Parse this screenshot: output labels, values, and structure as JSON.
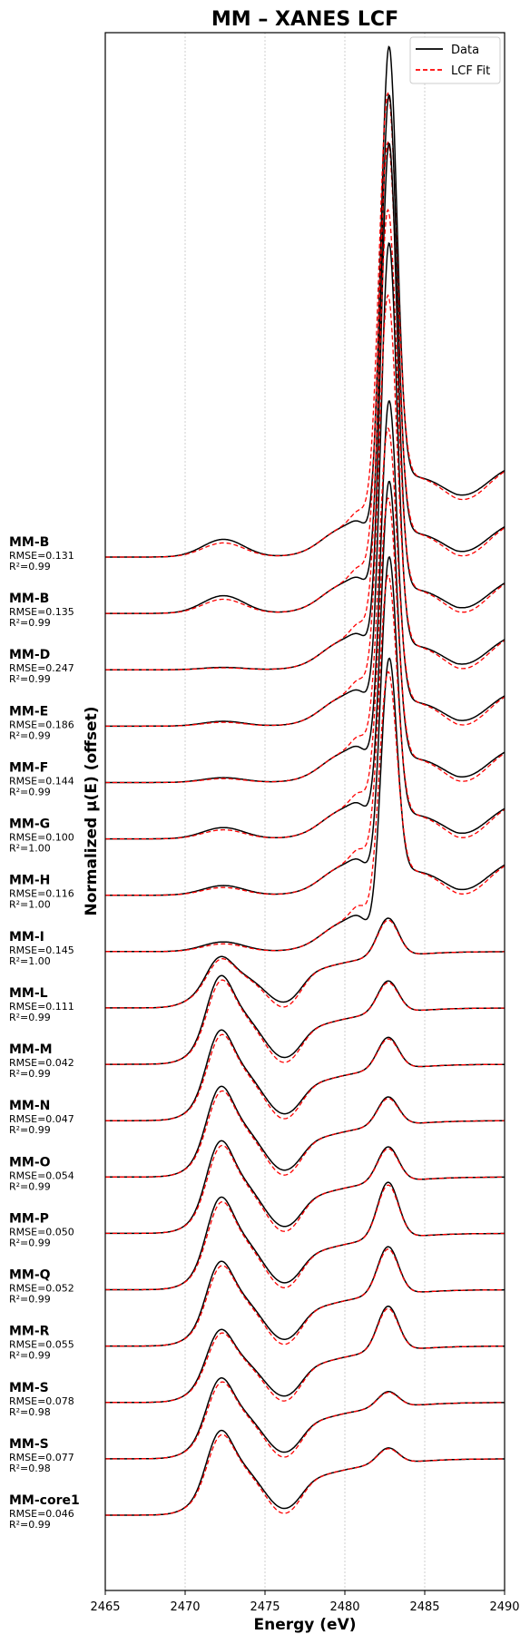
{
  "chart_data": {
    "type": "line",
    "title": "MM – XANES LCF",
    "xlabel": "Energy (eV)",
    "ylabel": "Normalized μ(E) (offset)",
    "xlim": [
      2465,
      2490
    ],
    "xticks": [
      2465,
      2470,
      2475,
      2480,
      2485,
      2490
    ],
    "grid": "x-only dotted",
    "legend": {
      "placement": "top-right",
      "entries": [
        {
          "label": "Data",
          "color": "#000000",
          "style": "solid"
        },
        {
          "label": "LCF Fit",
          "color": "#ff0000",
          "style": "dashed"
        }
      ]
    },
    "offset_step": 0.35,
    "series": [
      {
        "name": "MM-B",
        "rmse": "RMSE=0.131",
        "r2": "R²=0.99",
        "kind": "reduced",
        "peak": 2.75,
        "white": 0.11,
        "baseline": 0.5,
        "fit_ratio": 0.9
      },
      {
        "name": "MM-B",
        "rmse": "RMSE=0.135",
        "r2": "R²=0.99",
        "kind": "reduced",
        "peak": 2.8,
        "white": 0.11,
        "baseline": 0.5,
        "fit_ratio": 0.9
      },
      {
        "name": "MM-D",
        "rmse": "RMSE=0.247",
        "r2": "R²=0.99",
        "kind": "reduced",
        "peak": 2.85,
        "white": 0.015,
        "baseline": 0.5,
        "fit_ratio": 0.86
      },
      {
        "name": "MM-E",
        "rmse": "RMSE=0.186",
        "r2": "R²=0.99",
        "kind": "reduced",
        "peak": 2.58,
        "white": 0.03,
        "baseline": 0.5,
        "fit_ratio": 0.88
      },
      {
        "name": "MM-F",
        "rmse": "RMSE=0.144",
        "r2": "R²=0.99",
        "kind": "reduced",
        "peak": 1.95,
        "white": 0.03,
        "baseline": 0.5,
        "fit_ratio": 0.92
      },
      {
        "name": "MM-G",
        "rmse": "RMSE=0.100",
        "r2": "R²=1.00",
        "kind": "reduced",
        "peak": 1.8,
        "white": 0.07,
        "baseline": 0.5,
        "fit_ratio": 0.95
      },
      {
        "name": "MM-H",
        "rmse": "RMSE=0.116",
        "r2": "R²=1.00",
        "kind": "reduced",
        "peak": 1.68,
        "white": 0.06,
        "baseline": 0.5,
        "fit_ratio": 0.94
      },
      {
        "name": "MM-I",
        "rmse": "RMSE=0.145",
        "r2": "R²=1.00",
        "kind": "reduced",
        "peak": 1.4,
        "white": 0.06,
        "baseline": 0.5,
        "fit_ratio": 0.95
      },
      {
        "name": "MM-L",
        "rmse": "RMSE=0.111",
        "r2": "R²=0.99",
        "kind": "oxidized",
        "peak": 0.24,
        "white": 0.19,
        "baseline": 0.35,
        "fit_ratio": 0.95
      },
      {
        "name": "MM-M",
        "rmse": "RMSE=0.042",
        "r2": "R²=0.99",
        "kind": "oxidized",
        "peak": 0.2,
        "white": 0.38,
        "baseline": 0.32,
        "fit_ratio": 0.95
      },
      {
        "name": "MM-N",
        "rmse": "RMSE=0.047",
        "r2": "R²=0.99",
        "kind": "oxidized",
        "peak": 0.2,
        "white": 0.39,
        "baseline": 0.3,
        "fit_ratio": 0.95
      },
      {
        "name": "MM-O",
        "rmse": "RMSE=0.054",
        "r2": "R²=0.99",
        "kind": "oxidized",
        "peak": 0.18,
        "white": 0.39,
        "baseline": 0.3,
        "fit_ratio": 0.95
      },
      {
        "name": "MM-P",
        "rmse": "RMSE=0.050",
        "r2": "R²=0.99",
        "kind": "oxidized",
        "peak": 0.22,
        "white": 0.4,
        "baseline": 0.3,
        "fit_ratio": 0.95
      },
      {
        "name": "MM-Q",
        "rmse": "RMSE=0.052",
        "r2": "R²=0.99",
        "kind": "oxidized",
        "peak": 0.35,
        "white": 0.4,
        "baseline": 0.3,
        "fit_ratio": 0.95
      },
      {
        "name": "MM-R",
        "rmse": "RMSE=0.055",
        "r2": "R²=0.99",
        "kind": "oxidized",
        "peak": 0.3,
        "white": 0.36,
        "baseline": 0.3,
        "fit_ratio": 0.95
      },
      {
        "name": "MM-S",
        "rmse": "RMSE=0.078",
        "r2": "R²=0.98",
        "kind": "oxidized",
        "peak": 0.28,
        "white": 0.3,
        "baseline": 0.3,
        "fit_ratio": 0.95
      },
      {
        "name": "MM-S",
        "rmse": "RMSE=0.077",
        "r2": "R²=0.98",
        "kind": "oxidized",
        "peak": 0.1,
        "white": 0.34,
        "baseline": 0.3,
        "fit_ratio": 0.95
      },
      {
        "name": "MM-core1",
        "rmse": "RMSE=0.046",
        "r2": "R²=0.99",
        "kind": "oxidized",
        "peak": 0.1,
        "white": 0.36,
        "baseline": 0.3,
        "fit_ratio": 0.95
      }
    ]
  }
}
